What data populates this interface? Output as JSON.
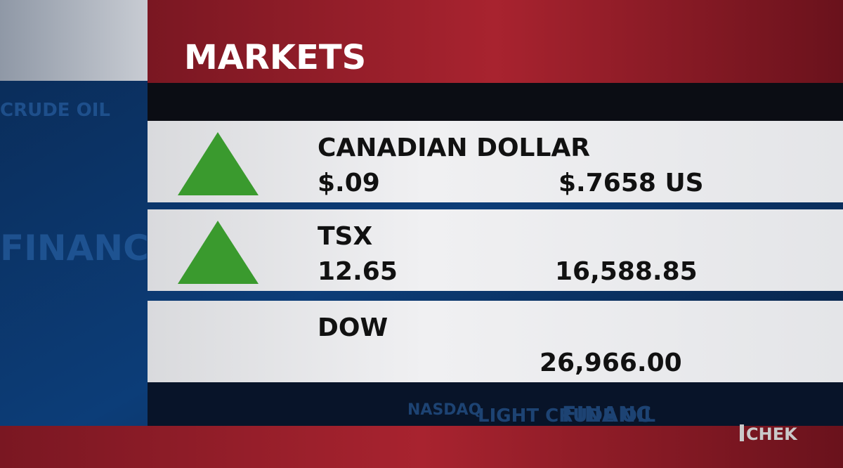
{
  "header": {
    "title": "MARKETS"
  },
  "rows": [
    {
      "name": "CANADIAN DOLLAR",
      "change": "$.09",
      "value": "$.7658 US",
      "trend": "up"
    },
    {
      "name": "TSX",
      "change": "12.65",
      "value": "16,588.85",
      "trend": "up"
    },
    {
      "name": "DOW",
      "value": "26,966.00"
    }
  ],
  "background_words": [
    "CRUDE OIL",
    "FINANC",
    "NASDAQ",
    "LIGHT CRUDE OIL",
    "FINANC"
  ],
  "logo": "CHEK"
}
